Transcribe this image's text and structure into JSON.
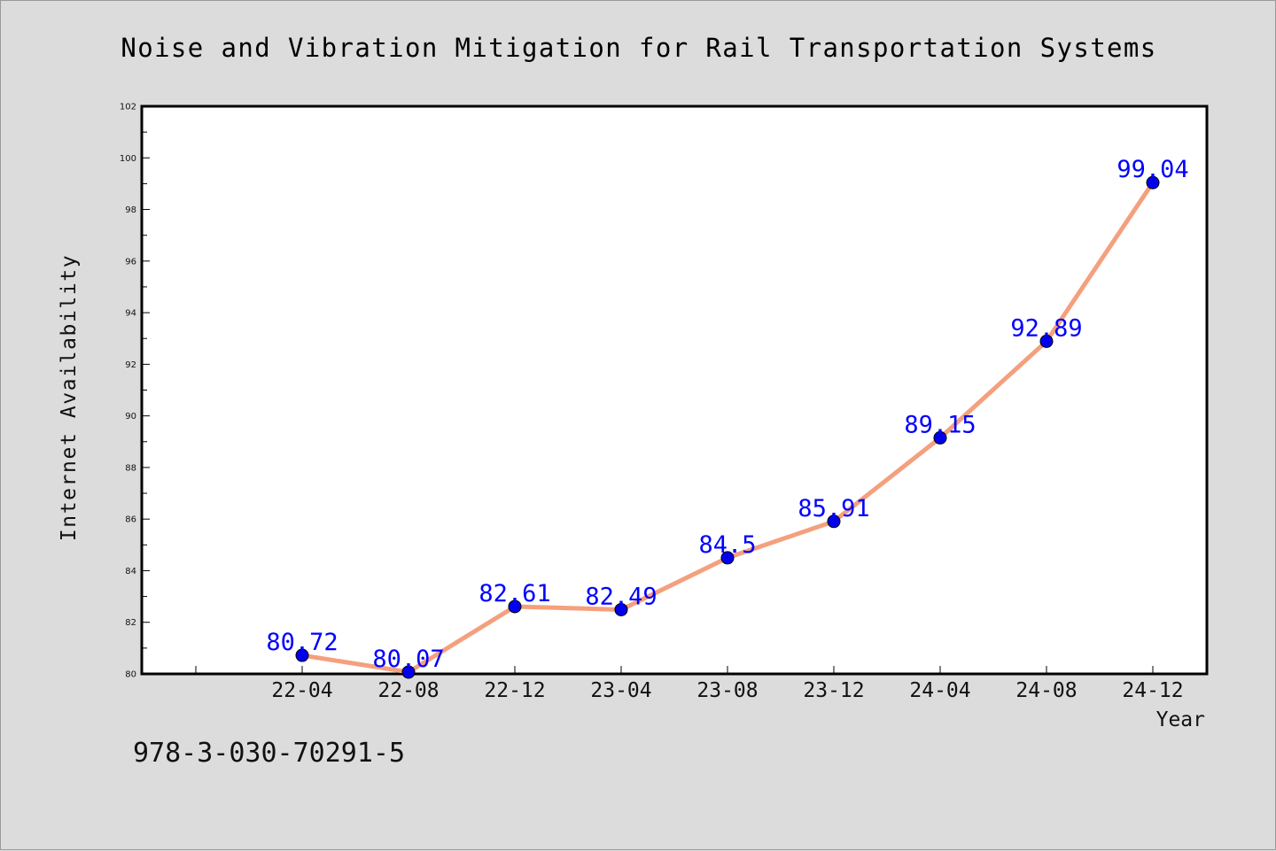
{
  "chart_data": {
    "type": "line",
    "title": "Noise and Vibration Mitigation for Rail Transportation Systems",
    "xlabel": "Year",
    "ylabel": "Internet Availability",
    "categories": [
      "22-04",
      "22-08",
      "22-12",
      "23-04",
      "23-08",
      "23-12",
      "24-04",
      "24-08",
      "24-12"
    ],
    "series": [
      {
        "values": [
          80.72,
          80.07,
          82.61,
          82.49,
          84.5,
          85.91,
          89.15,
          92.89,
          99.04
        ]
      }
    ],
    "data_labels": [
      "80.72",
      "80.07",
      "82.61",
      "82.49",
      "84.5",
      "85.91",
      "89.15",
      "92.89",
      "99.04"
    ],
    "ylim": [
      80,
      102
    ],
    "y_ticks": [
      80,
      82,
      84,
      86,
      88,
      90,
      92,
      94,
      96,
      98,
      100,
      102
    ],
    "grid": false,
    "legend": "none",
    "colors": {
      "line": "#f4a07e",
      "marker": "#0000ee",
      "data_label": "#0000ff",
      "background": "#dcdcdc",
      "plot_area": "#ffffff"
    }
  },
  "footer": {
    "code": "978-3-030-70291-5"
  }
}
